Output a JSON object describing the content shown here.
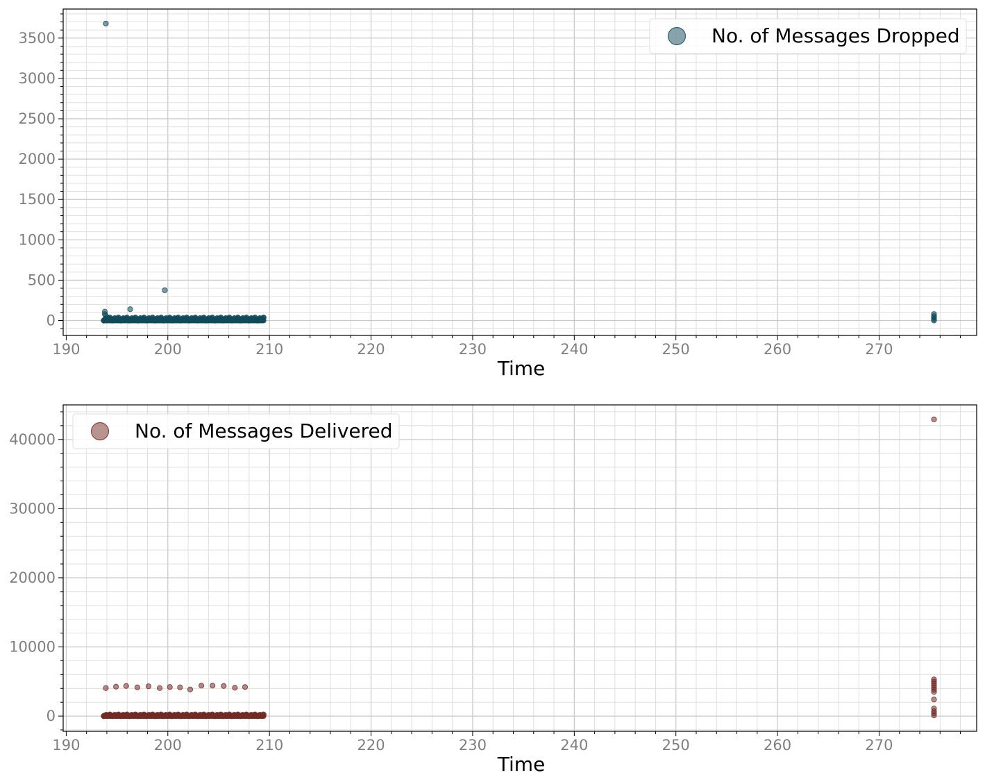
{
  "chart_data": [
    {
      "type": "scatter",
      "title": "",
      "xlabel": "Time",
      "ylabel": "",
      "xlim": [
        189.7,
        279.6
      ],
      "ylim": [
        -185,
        3860
      ],
      "xticks": [
        190,
        200,
        210,
        220,
        230,
        240,
        250,
        260,
        270
      ],
      "yticks": [
        0,
        500,
        1000,
        1500,
        2000,
        2500,
        3000,
        3500
      ],
      "x_minor_step": 2,
      "y_minor_step": 100,
      "grid": true,
      "legend_position": "top-right",
      "color": "#0f4a5a",
      "series": [
        {
          "name": "No. of Messages Dropped",
          "dense_band": {
            "x_start": 193.7,
            "x_end": 209.5,
            "y_low": 0,
            "y_high": 40
          },
          "points": [
            [
              193.9,
              3680
            ],
            [
              199.7,
              375
            ],
            [
              196.3,
              140
            ],
            [
              193.8,
              110
            ],
            [
              193.8,
              80
            ],
            [
              193.9,
              60
            ],
            [
              275.4,
              80
            ],
            [
              275.4,
              55
            ],
            [
              275.4,
              35
            ],
            [
              275.4,
              15
            ],
            [
              275.4,
              0
            ]
          ]
        }
      ]
    },
    {
      "type": "scatter",
      "title": "",
      "xlabel": "Time",
      "ylabel": "",
      "xlim": [
        189.7,
        279.6
      ],
      "ylim": [
        -2200,
        45000
      ],
      "xticks": [
        190,
        200,
        210,
        220,
        230,
        240,
        250,
        260,
        270
      ],
      "yticks": [
        0,
        10000,
        20000,
        30000,
        40000
      ],
      "x_minor_step": 2,
      "y_minor_step": 2000,
      "grid": true,
      "legend_position": "top-left",
      "color": "#722a24",
      "series": [
        {
          "name": "No. of Messages Delivered",
          "dense_band": {
            "x_start": 193.7,
            "x_end": 209.5,
            "y_low": 0,
            "y_high": 250
          },
          "points": [
            [
              275.4,
              42900
            ],
            [
              193.9,
              4050
            ],
            [
              194.9,
              4250
            ],
            [
              195.9,
              4350
            ],
            [
              197.0,
              4150
            ],
            [
              198.1,
              4300
            ],
            [
              199.2,
              4050
            ],
            [
              200.2,
              4200
            ],
            [
              201.2,
              4150
            ],
            [
              202.2,
              3850
            ],
            [
              203.3,
              4400
            ],
            [
              204.4,
              4400
            ],
            [
              205.5,
              4350
            ],
            [
              206.6,
              4100
            ],
            [
              207.6,
              4200
            ],
            [
              275.4,
              5300
            ],
            [
              275.4,
              5000
            ],
            [
              275.4,
              4700
            ],
            [
              275.4,
              4400
            ],
            [
              275.4,
              4100
            ],
            [
              275.4,
              3800
            ],
            [
              275.4,
              3500
            ],
            [
              275.4,
              2400
            ],
            [
              275.4,
              1100
            ],
            [
              275.4,
              700
            ],
            [
              275.4,
              400
            ],
            [
              275.4,
              100
            ]
          ]
        }
      ]
    }
  ]
}
